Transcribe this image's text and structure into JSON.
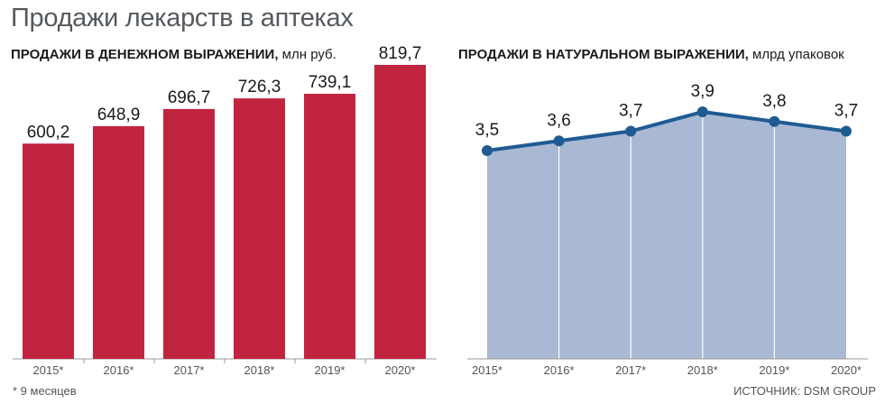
{
  "title": "Продажи лекарств в аптеках",
  "footnote": "* 9 месяцев",
  "source": "ИСТОЧНИК: DSM GROUP",
  "colors": {
    "bar": "#c1243f",
    "area": "#a9b9d3",
    "line": "#1f5b93"
  },
  "chart_data": [
    {
      "type": "bar",
      "title": "ПРОДАЖИ В ДЕНЕЖНОМ ВЫРАЖЕНИИ",
      "unit": "млн руб.",
      "categories": [
        "2015*",
        "2016*",
        "2017*",
        "2018*",
        "2019*",
        "2020*"
      ],
      "values": [
        600.2,
        648.9,
        696.7,
        726.3,
        739.1,
        819.7
      ],
      "labels": [
        "600,2",
        "648,9",
        "696,7",
        "726,3",
        "739,1",
        "819,7"
      ],
      "ylim": [
        0,
        900
      ]
    },
    {
      "type": "area",
      "title": "ПРОДАЖИ В НАТУРАЛЬНОМ ВЫРАЖЕНИИ",
      "unit": "млрд упаковок",
      "categories": [
        "2015*",
        "2016*",
        "2017*",
        "2018*",
        "2019*",
        "2020*"
      ],
      "values": [
        3.5,
        3.6,
        3.7,
        3.9,
        3.8,
        3.7
      ],
      "labels": [
        "3,5",
        "3,6",
        "3,7",
        "3,9",
        "3,8",
        "3,7"
      ],
      "ylim": [
        0,
        4.1
      ]
    }
  ]
}
